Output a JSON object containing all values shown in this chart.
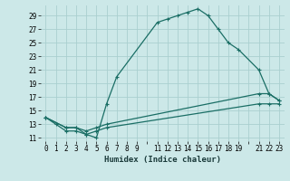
{
  "xlabel": "Humidex (Indice chaleur)",
  "bg_color": "#cce8e8",
  "grid_color": "#aacfcf",
  "line_color": "#1a6e65",
  "xlim": [
    -0.5,
    23.5
  ],
  "ylim": [
    10.5,
    30.5
  ],
  "xtick_labels": [
    "0",
    "1",
    "2",
    "3",
    "4",
    "5",
    "6",
    "7",
    "8",
    "9",
    "",
    "11",
    "12",
    "13",
    "14",
    "15",
    "16",
    "17",
    "18",
    "19",
    "",
    "21",
    "22",
    "23"
  ],
  "xtick_positions": [
    0,
    1,
    2,
    3,
    4,
    5,
    6,
    7,
    8,
    9,
    10,
    11,
    12,
    13,
    14,
    15,
    16,
    17,
    18,
    19,
    20,
    21,
    22,
    23
  ],
  "ytick_labels": [
    "11",
    "13",
    "15",
    "17",
    "19",
    "21",
    "23",
    "25",
    "27",
    "29"
  ],
  "ytick_positions": [
    11,
    13,
    15,
    17,
    19,
    21,
    23,
    25,
    27,
    29
  ],
  "series": [
    {
      "x": [
        0,
        1,
        2,
        3,
        4,
        5,
        6,
        7,
        11,
        12,
        13,
        14,
        15,
        16,
        17,
        18,
        19,
        21,
        22,
        23
      ],
      "y": [
        14,
        13,
        12,
        12,
        11.5,
        11,
        16,
        20,
        28,
        28.5,
        29,
        29.5,
        30,
        29,
        27,
        25,
        24,
        21,
        17.5,
        16.5
      ]
    },
    {
      "x": [
        0,
        2,
        3,
        4,
        5,
        6,
        21,
        22,
        23
      ],
      "y": [
        14,
        12.5,
        12.5,
        12,
        12.5,
        13,
        17.5,
        17.5,
        16.5
      ]
    },
    {
      "x": [
        0,
        2,
        3,
        4,
        5,
        6,
        21,
        22,
        23
      ],
      "y": [
        14,
        12.5,
        12.5,
        11.5,
        12,
        12.5,
        16,
        16,
        16
      ]
    }
  ]
}
